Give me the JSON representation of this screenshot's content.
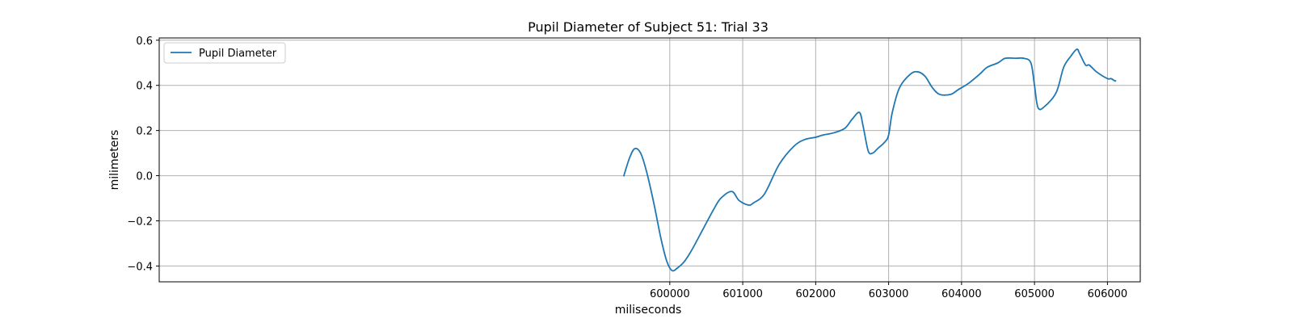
{
  "chart_data": {
    "type": "line",
    "title": "Pupil Diameter of Subject 51: Trial 33",
    "xlabel": "miliseconds",
    "ylabel": "milimeters",
    "xlim": [
      593000,
      606450
    ],
    "ylim": [
      -0.47,
      0.61
    ],
    "xticks": [
      600000,
      601000,
      602000,
      603000,
      604000,
      605000,
      606000
    ],
    "xtick_labels": [
      "600000",
      "601000",
      "602000",
      "603000",
      "604000",
      "605000",
      "606000"
    ],
    "yticks": [
      -0.4,
      -0.2,
      0.0,
      0.2,
      0.4,
      0.6
    ],
    "ytick_labels": [
      "−0.4",
      "−0.2",
      "0.0",
      "0.2",
      "0.4",
      "0.6"
    ],
    "grid": true,
    "legend": {
      "position": "top-left",
      "entries": [
        "Pupil Diameter"
      ]
    },
    "series": [
      {
        "name": "Pupil Diameter",
        "color": "#1f77b4",
        "x": [
          599370,
          599450,
          599520,
          599600,
          599680,
          599780,
          599880,
          599960,
          600030,
          600100,
          600200,
          600300,
          600450,
          600600,
          600700,
          600850,
          600950,
          601080,
          601150,
          601300,
          601500,
          601700,
          601850,
          602000,
          602100,
          602250,
          602400,
          602500,
          602600,
          602650,
          602720,
          602780,
          602850,
          602950,
          603000,
          603050,
          603150,
          603300,
          603400,
          603500,
          603600,
          603700,
          603850,
          603950,
          604100,
          604250,
          604350,
          604500,
          604600,
          604750,
          604850,
          604950,
          605000,
          605050,
          605150,
          605300,
          605400,
          605500,
          605580,
          605620,
          605700,
          605750,
          605850,
          606000,
          606050,
          606100,
          606110
        ],
        "y": [
          0.0,
          0.08,
          0.12,
          0.1,
          0.02,
          -0.12,
          -0.28,
          -0.38,
          -0.42,
          -0.41,
          -0.38,
          -0.33,
          -0.24,
          -0.15,
          -0.1,
          -0.07,
          -0.11,
          -0.13,
          -0.12,
          -0.08,
          0.05,
          0.13,
          0.16,
          0.17,
          0.18,
          0.19,
          0.21,
          0.25,
          0.28,
          0.22,
          0.11,
          0.1,
          0.12,
          0.15,
          0.18,
          0.28,
          0.39,
          0.45,
          0.46,
          0.44,
          0.39,
          0.36,
          0.36,
          0.38,
          0.41,
          0.45,
          0.48,
          0.5,
          0.52,
          0.52,
          0.52,
          0.5,
          0.4,
          0.3,
          0.31,
          0.37,
          0.48,
          0.53,
          0.56,
          0.54,
          0.49,
          0.49,
          0.46,
          0.43,
          0.43,
          0.42,
          0.42
        ]
      }
    ]
  }
}
